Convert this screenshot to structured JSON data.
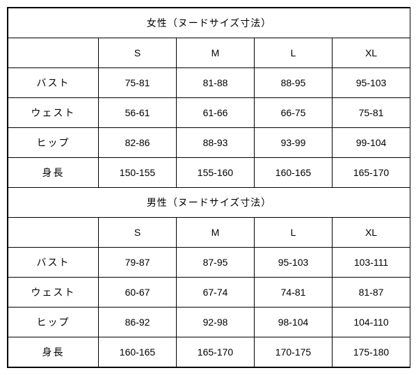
{
  "table": {
    "type": "table",
    "background_color": "#ffffff",
    "border_color": "#000000",
    "text_color": "#000000",
    "font_size": 14,
    "sections": [
      {
        "title": "女性（ヌードサイズ寸法）",
        "size_headers": [
          "S",
          "M",
          "L",
          "XL"
        ],
        "rows": [
          {
            "label": "バスト",
            "values": [
              "75-81",
              "81-88",
              "88-95",
              "95-103"
            ]
          },
          {
            "label": "ウェスト",
            "values": [
              "56-61",
              "61-66",
              "66-75",
              "75-81"
            ]
          },
          {
            "label": "ヒップ",
            "values": [
              "82-86",
              "88-93",
              "93-99",
              "99-104"
            ]
          },
          {
            "label": "身長",
            "values": [
              "150-155",
              "155-160",
              "160-165",
              "165-170"
            ]
          }
        ]
      },
      {
        "title": "男性（ヌードサイズ寸法）",
        "size_headers": [
          "S",
          "M",
          "L",
          "XL"
        ],
        "rows": [
          {
            "label": "バスト",
            "values": [
              "79-87",
              "87-95",
              "95-103",
              "103-111"
            ]
          },
          {
            "label": "ウェスト",
            "values": [
              "60-67",
              "67-74",
              "74-81",
              "81-87"
            ]
          },
          {
            "label": "ヒップ",
            "values": [
              "86-92",
              "92-98",
              "98-104",
              "104-110"
            ]
          },
          {
            "label": "身長",
            "values": [
              "160-165",
              "165-170",
              "170-175",
              "175-180"
            ]
          }
        ]
      }
    ]
  }
}
